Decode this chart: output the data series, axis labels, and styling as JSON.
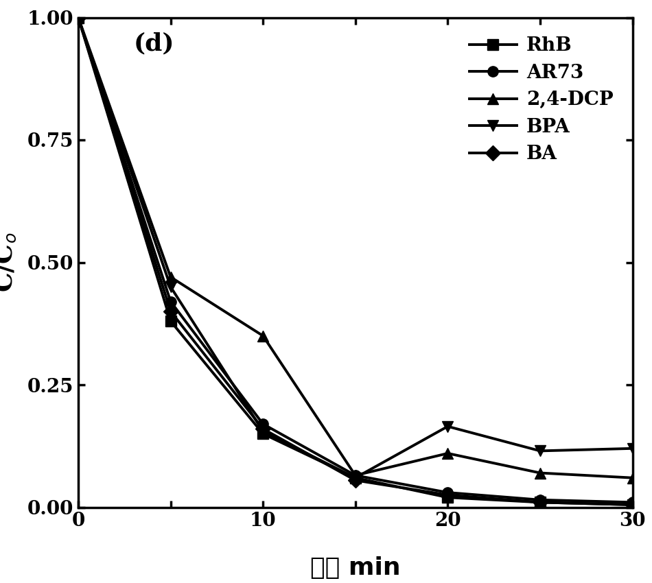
{
  "x": [
    0,
    5,
    10,
    15,
    20,
    25,
    30
  ],
  "series": {
    "RhB": [
      1.0,
      0.38,
      0.15,
      0.06,
      0.02,
      0.01,
      0.005
    ],
    "AR73": [
      1.0,
      0.42,
      0.17,
      0.065,
      0.03,
      0.015,
      0.01
    ],
    "2,4-DCP": [
      1.0,
      0.47,
      0.35,
      0.065,
      0.11,
      0.07,
      0.06
    ],
    "BPA": [
      1.0,
      0.45,
      0.155,
      0.06,
      0.165,
      0.115,
      0.12
    ],
    "BA": [
      1.0,
      0.4,
      0.16,
      0.055,
      0.025,
      0.01,
      0.005
    ]
  },
  "markers": {
    "RhB": "s",
    "AR73": "o",
    "2,4-DCP": "^",
    "BPA": "v",
    "BA": "D"
  },
  "color": "#000000",
  "linewidth": 2.8,
  "markersize": 11,
  "xlabel_chinese": "时间",
  "xlabel_latin": " min",
  "panel_label": "(d)",
  "xlim": [
    0,
    30
  ],
  "ylim": [
    0.0,
    1.0
  ],
  "xticks": [
    0,
    5,
    10,
    15,
    20,
    25,
    30
  ],
  "xticklabels": [
    "0",
    "",
    "10",
    "",
    "20",
    "",
    "30"
  ],
  "yticks": [
    0.0,
    0.25,
    0.5,
    0.75,
    1.0
  ],
  "yticklabels": [
    "0.00",
    "0.25",
    "0.50",
    "0.75",
    "1.00"
  ],
  "legend_fontsize": 20,
  "axis_fontsize": 26,
  "tick_fontsize": 20,
  "panel_fontsize": 26,
  "chinese_fontsize": 26
}
